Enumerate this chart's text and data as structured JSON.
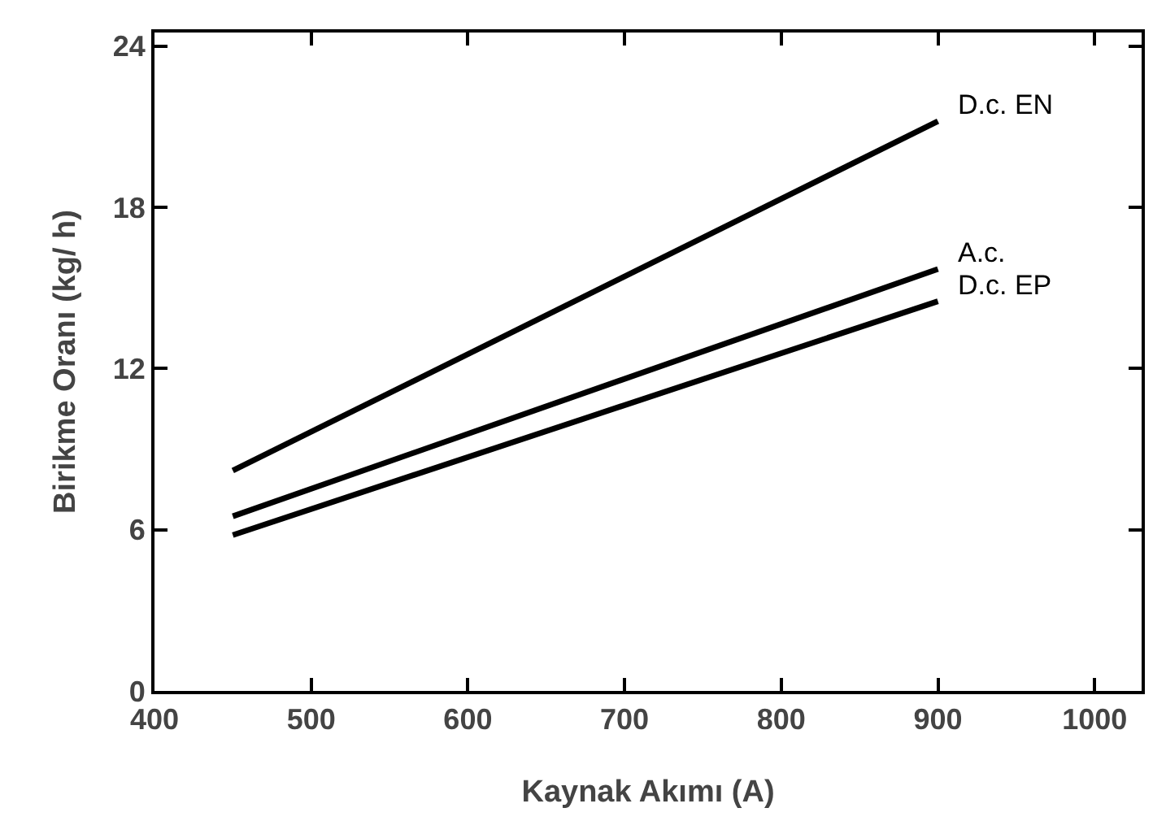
{
  "chart_data": {
    "type": "line",
    "xlabel": "Kaynak Akımı (A)",
    "ylabel": "Birikme Oranı (kg/ h)",
    "x": [
      450,
      900
    ],
    "series": [
      {
        "name": "D.c. EN",
        "color": "#000000",
        "values": [
          8.2,
          21.2
        ]
      },
      {
        "name": "A.c.",
        "color": "#000000",
        "values": [
          6.5,
          15.7
        ]
      },
      {
        "name": "D.c. EP",
        "color": "#000000",
        "values": [
          5.8,
          14.5
        ]
      }
    ],
    "xlim": [
      400,
      1030
    ],
    "xticks": [
      400,
      500,
      600,
      700,
      800,
      900,
      1000
    ],
    "ylim": [
      0,
      24.5
    ],
    "yticks": [
      0,
      6,
      12,
      18,
      24
    ],
    "grid": false,
    "legend": false,
    "marker": "none",
    "line_style": "solid"
  }
}
